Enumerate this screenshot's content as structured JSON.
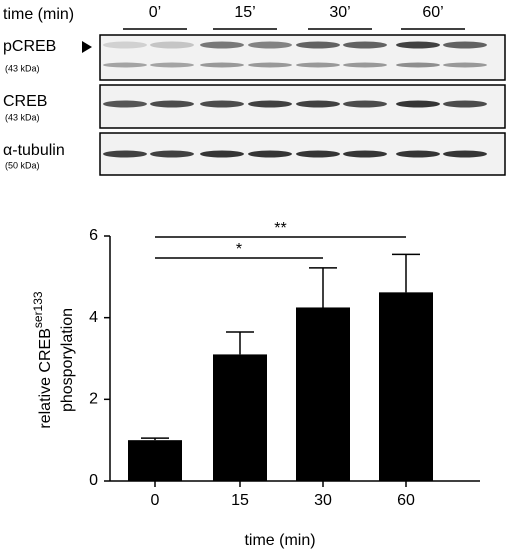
{
  "blot": {
    "time_label": "time (min)",
    "timepoints": [
      "0’",
      "15’",
      "30’",
      "60’"
    ],
    "rows": [
      {
        "name": "pCREB",
        "size": "(43 kDa)"
      },
      {
        "name": "CREB",
        "size": "(43 kDa)"
      },
      {
        "name": "α-tubulin",
        "size": "(50 kDa)"
      }
    ]
  },
  "chart_data": {
    "type": "bar",
    "categories": [
      "0",
      "15",
      "30",
      "60"
    ],
    "values": [
      1.0,
      3.1,
      4.25,
      4.62
    ],
    "errors": [
      0.05,
      0.55,
      0.97,
      0.93
    ],
    "color": "#000000",
    "ylim": [
      0,
      6
    ],
    "yticks": [
      0,
      2,
      4,
      6
    ],
    "ylabel": {
      "text": "relative CREB",
      "superscript": "ser133",
      "line2": "phosporylation"
    },
    "xlabel": "time (min)",
    "significance": [
      {
        "from": "0",
        "to": "30",
        "label": "*"
      },
      {
        "from": "0",
        "to": "60",
        "label": "**"
      }
    ]
  }
}
